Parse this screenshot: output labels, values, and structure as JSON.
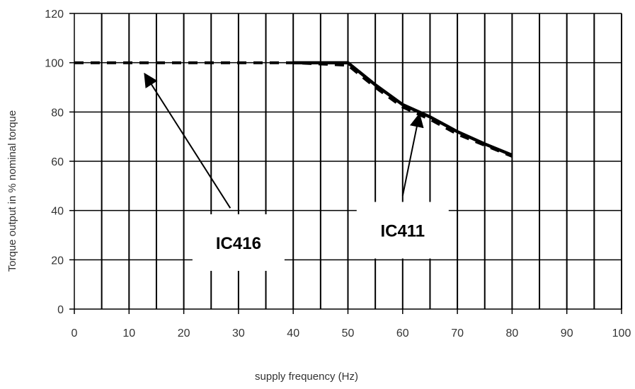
{
  "chart_data": {
    "type": "line",
    "title": "",
    "xlabel": "supply frequency (Hz)",
    "ylabel": "Torque output in % nominal torque",
    "xlim": [
      0,
      100
    ],
    "ylim": [
      0,
      120
    ],
    "x_ticks": [
      0,
      10,
      20,
      30,
      40,
      50,
      60,
      70,
      80,
      90,
      100
    ],
    "y_ticks": [
      0,
      20,
      40,
      60,
      80,
      100,
      120
    ],
    "x_minor_step": 5,
    "grid": true,
    "legend": "none",
    "series": [
      {
        "name": "IC411",
        "style": "solid",
        "color": "#000000",
        "x": [
          40,
          50,
          55,
          60,
          65,
          70,
          75,
          80
        ],
        "y": [
          100,
          100,
          91,
          83,
          78,
          72,
          67,
          62.5
        ]
      },
      {
        "name": "IC416",
        "style": "dashed",
        "color": "#000000",
        "x": [
          0,
          10,
          20,
          30,
          40,
          50,
          55,
          60,
          65,
          70,
          75,
          80
        ],
        "y": [
          100,
          100,
          100,
          100,
          100,
          99,
          90,
          82,
          77,
          71,
          66.5,
          62
        ]
      }
    ],
    "annotations": [
      {
        "text": "IC416",
        "arrow_tip": [
          13,
          95
        ],
        "arrow_tail": [
          28.5,
          41
        ],
        "label_at": [
          30,
          27
        ]
      },
      {
        "text": "IC411",
        "arrow_tip": [
          63,
          78.5
        ],
        "arrow_tail": [
          60,
          46
        ],
        "label_at": [
          60,
          32
        ]
      }
    ]
  }
}
